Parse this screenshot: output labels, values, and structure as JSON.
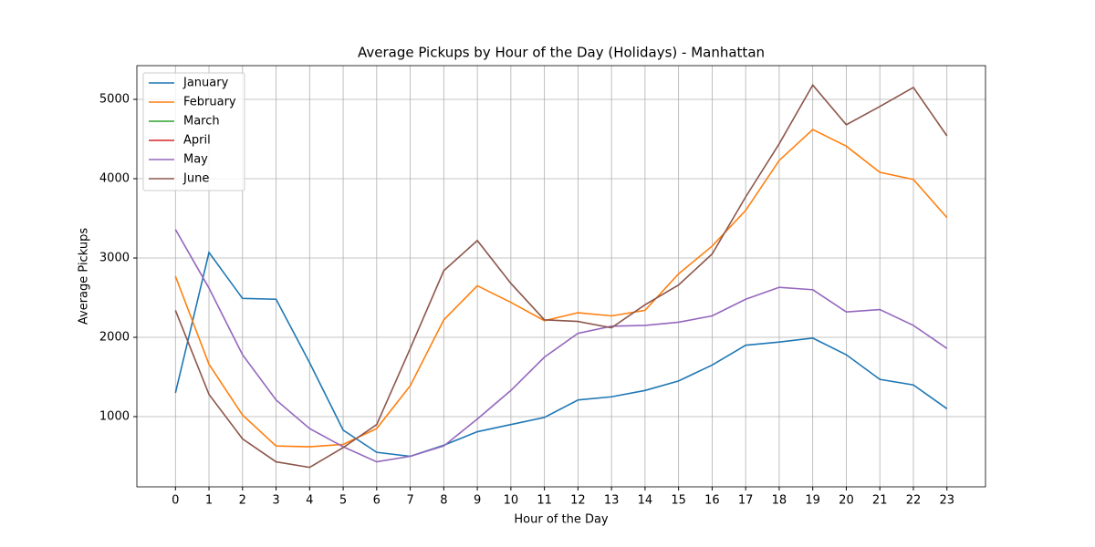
{
  "chart_data": {
    "type": "line",
    "title": "Average Pickups by Hour of the Day (Holidays) - Manhattan",
    "xlabel": "Hour of the Day",
    "ylabel": "Average Pickups",
    "x": [
      0,
      1,
      2,
      3,
      4,
      5,
      6,
      7,
      8,
      9,
      10,
      11,
      12,
      13,
      14,
      15,
      16,
      17,
      18,
      19,
      20,
      21,
      22,
      23
    ],
    "series": [
      {
        "name": "January",
        "color": "#1f77b4",
        "values": [
          1300,
          3070,
          2490,
          2480,
          1680,
          830,
          550,
          500,
          640,
          810,
          900,
          990,
          1210,
          1250,
          1330,
          1450,
          1650,
          1900,
          1940,
          1990,
          1780,
          1470,
          1400,
          1100
        ]
      },
      {
        "name": "February",
        "color": "#ff7f0e",
        "values": [
          2770,
          1660,
          1020,
          630,
          620,
          650,
          850,
          1390,
          2220,
          2650,
          2440,
          2210,
          2310,
          2270,
          2340,
          2800,
          3150,
          3600,
          4230,
          4620,
          4410,
          4080,
          3990,
          3510
        ]
      },
      {
        "name": "March",
        "color": "#2ca02c",
        "values": [
          null,
          null,
          null,
          null,
          null,
          null,
          null,
          null,
          null,
          null,
          null,
          null,
          null,
          null,
          null,
          null,
          null,
          null,
          null,
          null,
          null,
          null,
          null,
          null
        ]
      },
      {
        "name": "April",
        "color": "#d62728",
        "values": [
          null,
          null,
          null,
          null,
          null,
          null,
          null,
          null,
          null,
          null,
          null,
          null,
          null,
          null,
          null,
          null,
          null,
          null,
          null,
          null,
          null,
          null,
          null,
          null
        ]
      },
      {
        "name": "May",
        "color": "#9467bd",
        "values": [
          3360,
          2620,
          1780,
          1210,
          850,
          620,
          430,
          500,
          630,
          970,
          1330,
          1750,
          2050,
          2140,
          2150,
          2190,
          2270,
          2480,
          2630,
          2600,
          2320,
          2350,
          2150,
          1860
        ]
      },
      {
        "name": "June",
        "color": "#8c564b",
        "values": [
          2340,
          1280,
          720,
          430,
          360,
          610,
          900,
          1860,
          2840,
          3220,
          2680,
          2220,
          2200,
          2120,
          2410,
          2660,
          3050,
          3770,
          4440,
          5180,
          4680,
          4910,
          5150,
          4540
        ]
      }
    ],
    "xlim": [
      -1.15,
      24.15
    ],
    "xticks": [
      0,
      1,
      2,
      3,
      4,
      5,
      6,
      7,
      8,
      9,
      10,
      11,
      12,
      13,
      14,
      15,
      16,
      17,
      18,
      19,
      20,
      21,
      22,
      23
    ],
    "ylim": [
      115,
      5425
    ],
    "yticks": [
      1000,
      2000,
      3000,
      4000,
      5000
    ],
    "grid": true,
    "legend": "upper left"
  }
}
